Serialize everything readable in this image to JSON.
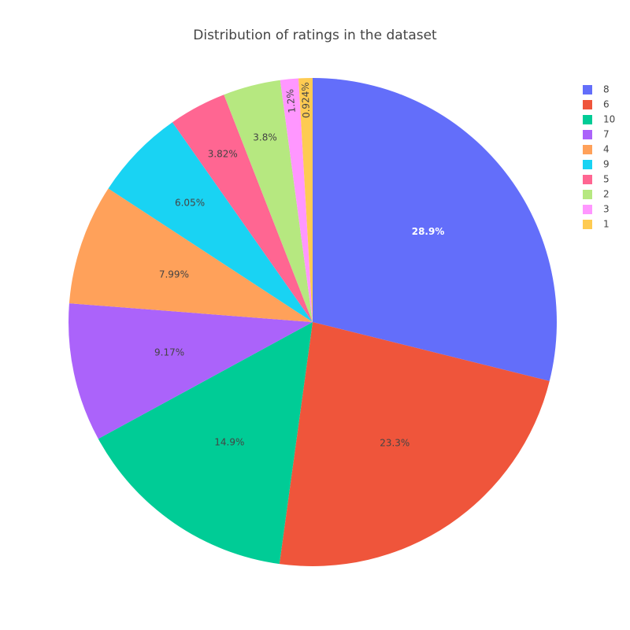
{
  "chart_data": {
    "type": "pie",
    "title": "Distribution of ratings in the dataset",
    "direction": "clockwise",
    "legend_position": "top-right",
    "slices": [
      {
        "label": "8",
        "value": 28.9,
        "text": "28.9%",
        "color": "#636efa",
        "text_color": "#ffffff"
      },
      {
        "label": "6",
        "value": 23.3,
        "text": "23.3%",
        "color": "#EF553B",
        "text_color": "#444444"
      },
      {
        "label": "10",
        "value": 14.9,
        "text": "14.9%",
        "color": "#00cc96",
        "text_color": "#444444"
      },
      {
        "label": "7",
        "value": 9.17,
        "text": "9.17%",
        "color": "#ab63fa",
        "text_color": "#444444"
      },
      {
        "label": "4",
        "value": 7.99,
        "text": "7.99%",
        "color": "#FFA15A",
        "text_color": "#444444"
      },
      {
        "label": "9",
        "value": 6.05,
        "text": "6.05%",
        "color": "#19d3f3",
        "text_color": "#444444"
      },
      {
        "label": "5",
        "value": 3.82,
        "text": "3.82%",
        "color": "#FF6692",
        "text_color": "#444444"
      },
      {
        "label": "2",
        "value": 3.8,
        "text": "3.8%",
        "color": "#B6E880",
        "text_color": "#444444"
      },
      {
        "label": "3",
        "value": 1.2,
        "text": "1.2%",
        "color": "#FF97FF",
        "text_color": "#444444"
      },
      {
        "label": "1",
        "value": 0.924,
        "text": "0.924%",
        "color": "#FECB52",
        "text_color": "#444444"
      }
    ]
  }
}
